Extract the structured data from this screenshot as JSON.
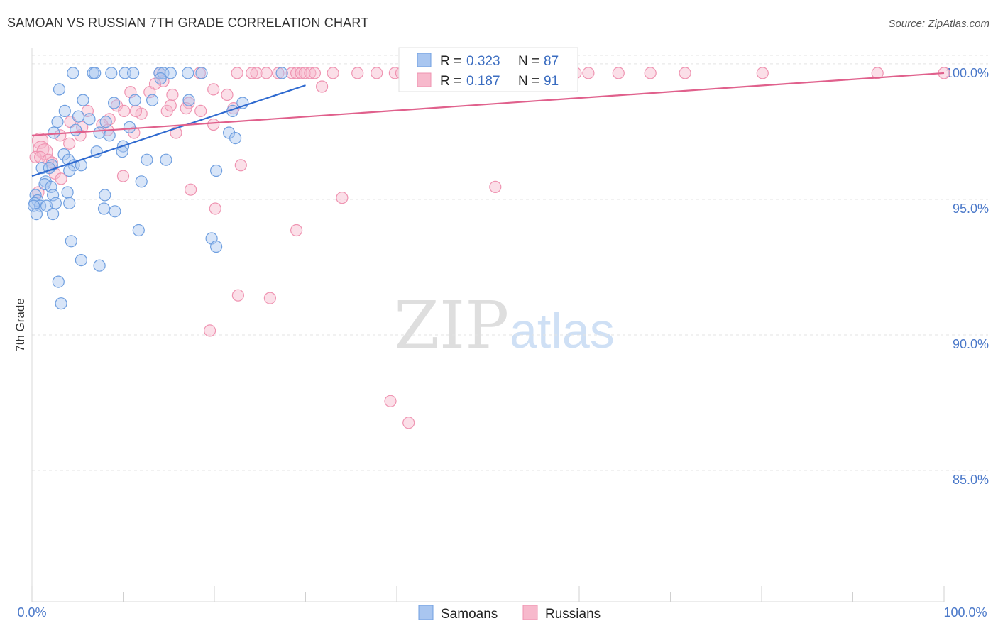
{
  "title": "SAMOAN VS RUSSIAN 7TH GRADE CORRELATION CHART",
  "source": "Source: ZipAtlas.com",
  "watermark": {
    "zip": "ZIP",
    "atlas": "atlas"
  },
  "colors": {
    "blue_fill": "#a9c6f0",
    "blue_stroke": "#6f9fe0",
    "blue_line": "#2f6ad0",
    "pink_fill": "#f7b9cc",
    "pink_stroke": "#ef93b1",
    "pink_line": "#e0608c",
    "grid": "#e3e3e3",
    "tick_label": "#4a78c9"
  },
  "legend": {
    "rows": [
      {
        "r_label": "R = ",
        "r_value": "0.323",
        "n_label": "N = ",
        "n_value": "87"
      },
      {
        "r_label": "R = ",
        "r_value": "0.187",
        "n_label": "N = ",
        "n_value": "91"
      }
    ]
  },
  "chart_data": {
    "type": "scatter",
    "title": "SAMOAN VS RUSSIAN 7TH GRADE CORRELATION CHART",
    "xlabel": "",
    "ylabel": "7th Grade",
    "xlim": [
      0,
      100
    ],
    "ylim": [
      80.5,
      100.6
    ],
    "x_tick_labels": [
      "0.0%",
      "100.0%"
    ],
    "y_ticks": [
      85,
      90,
      95,
      100
    ],
    "y_tick_labels": [
      "85.0%",
      "90.0%",
      "95.0%",
      "100.0%"
    ],
    "grid": true,
    "legend_position": "top-center",
    "series": [
      {
        "name": "Samoans",
        "color": "#a9c6f0",
        "trend": {
          "x": [
            0,
            30
          ],
          "y": [
            96.2,
            99.55
          ]
        },
        "points": [
          [
            4.5,
            100
          ],
          [
            6.7,
            100
          ],
          [
            6.9,
            100
          ],
          [
            8.7,
            100
          ],
          [
            10.2,
            100
          ],
          [
            11.1,
            100
          ],
          [
            14.0,
            100
          ],
          [
            14.4,
            100
          ],
          [
            15.2,
            100
          ],
          [
            17.1,
            100
          ],
          [
            18.6,
            100
          ],
          [
            27.4,
            100
          ],
          [
            14.1,
            99.8
          ],
          [
            3.0,
            99.4
          ],
          [
            5.6,
            99
          ],
          [
            9.0,
            98.9
          ],
          [
            11.3,
            99.0
          ],
          [
            13.2,
            99.0
          ],
          [
            17.2,
            99.0
          ],
          [
            23.1,
            98.9
          ],
          [
            3.6,
            98.6
          ],
          [
            6.3,
            98.3
          ],
          [
            8.1,
            98.2
          ],
          [
            10.7,
            98.0
          ],
          [
            5.1,
            98.4
          ],
          [
            2.8,
            98.2
          ],
          [
            4.8,
            97.9
          ],
          [
            2.4,
            97.8
          ],
          [
            7.4,
            97.8
          ],
          [
            8.5,
            97.7
          ],
          [
            22.0,
            98.6
          ],
          [
            21.6,
            97.8
          ],
          [
            22.3,
            97.6
          ],
          [
            10.0,
            97.3
          ],
          [
            7.1,
            97.1
          ],
          [
            3.5,
            97.0
          ],
          [
            9.9,
            97.1
          ],
          [
            12.6,
            96.8
          ],
          [
            14.7,
            96.8
          ],
          [
            4.0,
            96.8
          ],
          [
            4.6,
            96.6
          ],
          [
            5.4,
            96.6
          ],
          [
            2.2,
            96.6
          ],
          [
            1.1,
            96.5
          ],
          [
            1.9,
            96.5
          ],
          [
            4.1,
            96.4
          ],
          [
            20.2,
            96.4
          ],
          [
            1.5,
            96.0
          ],
          [
            12.0,
            96.0
          ],
          [
            3.9,
            95.6
          ],
          [
            1.4,
            95.9
          ],
          [
            2.1,
            95.8
          ],
          [
            8.0,
            95.5
          ],
          [
            2.3,
            95.5
          ],
          [
            0.4,
            95.5
          ],
          [
            0.6,
            95.3
          ],
          [
            0.3,
            95.2
          ],
          [
            0.9,
            95.1
          ],
          [
            1.6,
            95.1
          ],
          [
            2.6,
            95.2
          ],
          [
            4.1,
            95.2
          ],
          [
            0.2,
            95.1
          ],
          [
            0.5,
            94.8
          ],
          [
            2.3,
            94.8
          ],
          [
            7.9,
            95.0
          ],
          [
            9.1,
            94.9
          ],
          [
            11.7,
            94.2
          ],
          [
            4.3,
            93.8
          ],
          [
            19.7,
            93.9
          ],
          [
            20.2,
            93.6
          ],
          [
            5.4,
            93.1
          ],
          [
            7.4,
            92.9
          ],
          [
            2.9,
            92.3
          ],
          [
            3.2,
            91.5
          ]
        ]
      },
      {
        "name": "Russians",
        "color": "#f7b9cc",
        "trend": {
          "x": [
            0,
            100
          ],
          "y": [
            97.7,
            100.0
          ]
        },
        "points": [
          [
            14.0,
            100
          ],
          [
            18.4,
            100
          ],
          [
            22.5,
            100
          ],
          [
            24.1,
            100
          ],
          [
            24.6,
            100
          ],
          [
            25.7,
            100
          ],
          [
            27.0,
            100
          ],
          [
            28.5,
            100
          ],
          [
            29.0,
            100
          ],
          [
            29.5,
            100
          ],
          [
            29.9,
            100
          ],
          [
            30.5,
            100
          ],
          [
            31.0,
            100
          ],
          [
            33.0,
            100
          ],
          [
            35.7,
            100
          ],
          [
            37.8,
            100
          ],
          [
            39.8,
            100
          ],
          [
            40.5,
            100
          ],
          [
            42.6,
            100
          ],
          [
            43.4,
            100
          ],
          [
            45.4,
            100
          ],
          [
            46.8,
            100
          ],
          [
            48.7,
            100
          ],
          [
            51.2,
            100
          ],
          [
            53.7,
            100
          ],
          [
            57.4,
            100
          ],
          [
            59.6,
            100
          ],
          [
            61.0,
            100
          ],
          [
            64.3,
            100
          ],
          [
            67.8,
            100
          ],
          [
            71.6,
            100
          ],
          [
            80.1,
            100
          ],
          [
            92.7,
            100
          ],
          [
            100.0,
            100
          ],
          [
            14.4,
            99.7
          ],
          [
            13.5,
            99.6
          ],
          [
            31.8,
            99.5
          ],
          [
            19.9,
            99.4
          ],
          [
            10.8,
            99.3
          ],
          [
            12.9,
            99.3
          ],
          [
            15.4,
            99.2
          ],
          [
            21.4,
            99.2
          ],
          [
            17.2,
            98.9
          ],
          [
            9.3,
            98.8
          ],
          [
            16.9,
            98.7
          ],
          [
            18.5,
            98.6
          ],
          [
            14.8,
            98.6
          ],
          [
            12.0,
            98.5
          ],
          [
            11.4,
            98.6
          ],
          [
            6.1,
            98.6
          ],
          [
            8.5,
            98.3
          ],
          [
            10.1,
            98.6
          ],
          [
            15.2,
            98.8
          ],
          [
            22.1,
            98.7
          ],
          [
            19.9,
            98.1
          ],
          [
            7.7,
            98.1
          ],
          [
            4.2,
            98.2
          ],
          [
            5.5,
            98.0
          ],
          [
            8.3,
            97.9
          ],
          [
            3.1,
            97.7
          ],
          [
            5.3,
            97.7
          ],
          [
            11.2,
            97.8
          ],
          [
            0.9,
            97.5
          ],
          [
            4.1,
            97.4
          ],
          [
            1.0,
            97.2
          ],
          [
            1.4,
            97.1
          ],
          [
            15.8,
            97.8
          ],
          [
            0.4,
            96.9
          ],
          [
            0.9,
            96.9
          ],
          [
            1.8,
            96.8
          ],
          [
            2.2,
            96.7
          ],
          [
            2.5,
            96.3
          ],
          [
            3.2,
            96.1
          ],
          [
            22.9,
            96.6
          ],
          [
            10.0,
            96.2
          ],
          [
            0.7,
            95.6
          ],
          [
            17.4,
            95.7
          ],
          [
            20.1,
            95.0
          ],
          [
            34.0,
            95.4
          ],
          [
            50.8,
            95.8
          ],
          [
            29.0,
            94.2
          ],
          [
            22.6,
            91.8
          ],
          [
            26.1,
            91.7
          ],
          [
            19.5,
            90.5
          ],
          [
            39.3,
            87.9
          ],
          [
            41.3,
            87.1
          ]
        ]
      }
    ]
  },
  "bottom_legend": {
    "items": [
      "Samoans",
      "Russians"
    ]
  }
}
